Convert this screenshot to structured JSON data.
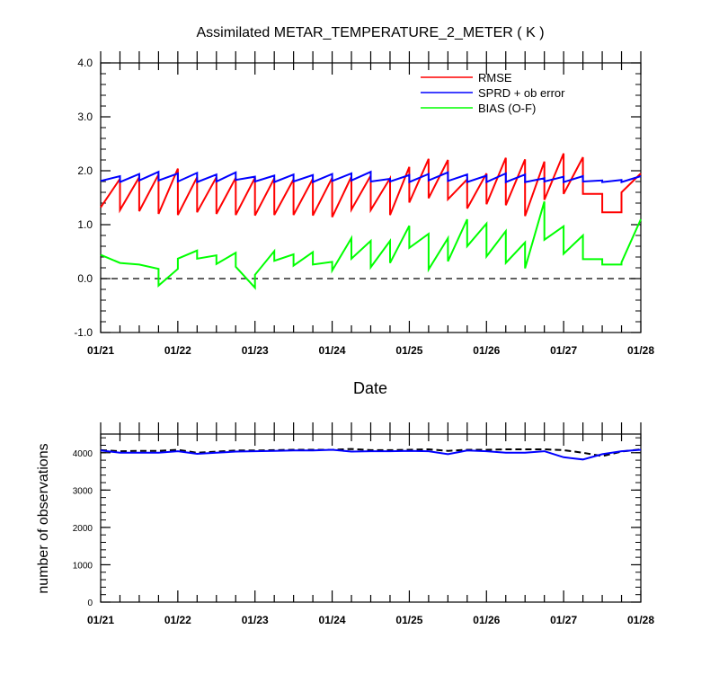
{
  "chart_data": [
    {
      "type": "line",
      "title": "Assimilated METAR_TEMPERATURE_2_METER ( K )",
      "xlabel": "Date",
      "ylabel": "",
      "ylim": [
        -1.0,
        4.0
      ],
      "yticks": [
        "-1.0",
        "0.0",
        "1.0",
        "2.0",
        "3.0",
        "4.0"
      ],
      "xlim": [
        0,
        7
      ],
      "xtick_labels": [
        "01/21",
        "01/22",
        "01/23",
        "01/24",
        "01/25",
        "01/26",
        "01/27",
        "01/28"
      ],
      "legend_position": "top-right",
      "reference_line": {
        "y": 0.0,
        "style": "dashed",
        "color": "#000000"
      },
      "series": [
        {
          "name": "RMSE",
          "color": "#ff0000",
          "x": [
            0,
            0.25,
            0.25,
            0.5,
            0.5,
            0.75,
            0.75,
            1.0,
            1.0,
            1.25,
            1.25,
            1.5,
            1.5,
            1.75,
            1.75,
            2.0,
            2.0,
            2.25,
            2.25,
            2.5,
            2.5,
            2.75,
            2.75,
            3.0,
            3.0,
            3.25,
            3.25,
            3.5,
            3.5,
            3.75,
            3.75,
            4.0,
            4.0,
            4.25,
            4.25,
            4.5,
            4.5,
            4.75,
            4.75,
            5.0,
            5.0,
            5.25,
            5.25,
            5.5,
            5.5,
            5.75,
            5.75,
            6.0,
            6.0,
            6.25,
            6.25,
            6.5,
            6.5,
            6.75,
            6.75,
            7.0
          ],
          "y": [
            1.32,
            1.85,
            1.27,
            1.88,
            1.25,
            1.93,
            1.2,
            2.04,
            1.18,
            1.88,
            1.23,
            1.88,
            1.2,
            1.87,
            1.18,
            1.87,
            1.17,
            1.86,
            1.18,
            1.84,
            1.18,
            1.85,
            1.17,
            1.87,
            1.14,
            1.89,
            1.28,
            1.91,
            1.27,
            1.86,
            1.18,
            2.07,
            1.41,
            2.22,
            1.49,
            2.2,
            1.47,
            1.84,
            1.3,
            1.95,
            1.38,
            2.24,
            1.36,
            2.21,
            1.16,
            2.17,
            1.46,
            2.32,
            1.57,
            2.25,
            1.57,
            1.57,
            1.23,
            1.23,
            1.6,
            1.95
          ]
        },
        {
          "name": "SPRD + ob error",
          "color": "#0000ff",
          "x": [
            0,
            0.25,
            0.25,
            0.5,
            0.5,
            0.75,
            0.75,
            1.0,
            1.0,
            1.25,
            1.25,
            1.5,
            1.5,
            1.75,
            1.75,
            2.0,
            2.0,
            2.25,
            2.25,
            2.5,
            2.5,
            2.75,
            2.75,
            3.0,
            3.0,
            3.25,
            3.25,
            3.5,
            3.5,
            3.75,
            3.75,
            4.0,
            4.0,
            4.25,
            4.25,
            4.5,
            4.5,
            4.75,
            4.75,
            5.0,
            5.0,
            5.25,
            5.25,
            5.5,
            5.5,
            5.75,
            5.75,
            6.0,
            6.0,
            6.25,
            6.25,
            6.5,
            6.5,
            6.75,
            6.75,
            7.0
          ],
          "y": [
            1.81,
            1.9,
            1.79,
            1.94,
            1.82,
            1.98,
            1.82,
            1.95,
            1.8,
            1.96,
            1.79,
            1.93,
            1.8,
            1.97,
            1.83,
            1.89,
            1.8,
            1.91,
            1.79,
            1.93,
            1.8,
            1.92,
            1.79,
            1.94,
            1.81,
            1.95,
            1.82,
            1.98,
            1.8,
            1.85,
            1.8,
            1.92,
            1.79,
            1.94,
            1.82,
            1.97,
            1.81,
            1.93,
            1.79,
            1.91,
            1.79,
            1.95,
            1.79,
            1.93,
            1.79,
            1.86,
            1.8,
            1.89,
            1.79,
            1.9,
            1.8,
            1.82,
            1.79,
            1.83,
            1.79,
            1.9
          ]
        },
        {
          "name": "BIAS (O-F)",
          "color": "#00ff00",
          "x": [
            0,
            0.25,
            0.5,
            0.75,
            0.75,
            1.0,
            1.0,
            1.25,
            1.25,
            1.5,
            1.5,
            1.75,
            1.75,
            2.0,
            2.0,
            2.25,
            2.25,
            2.5,
            2.5,
            2.75,
            2.75,
            3.0,
            3.0,
            3.25,
            3.25,
            3.5,
            3.5,
            3.75,
            3.75,
            4.0,
            4.0,
            4.25,
            4.25,
            4.5,
            4.5,
            4.75,
            4.75,
            5.0,
            5.0,
            5.25,
            5.25,
            5.5,
            5.5,
            5.75,
            5.75,
            6.0,
            6.0,
            6.25,
            6.25,
            6.5,
            6.5,
            6.75,
            6.75,
            7.0
          ],
          "y": [
            0.44,
            0.29,
            0.26,
            0.18,
            -0.13,
            0.18,
            0.37,
            0.52,
            0.37,
            0.43,
            0.27,
            0.48,
            0.22,
            -0.17,
            0.07,
            0.51,
            0.33,
            0.45,
            0.24,
            0.49,
            0.26,
            0.31,
            0.15,
            0.75,
            0.37,
            0.7,
            0.21,
            0.7,
            0.29,
            0.98,
            0.57,
            0.83,
            0.17,
            0.75,
            0.32,
            1.1,
            0.6,
            1.02,
            0.41,
            0.88,
            0.29,
            0.67,
            0.19,
            1.43,
            0.72,
            0.97,
            0.46,
            0.8,
            0.36,
            0.36,
            0.26,
            0.26,
            0.3,
            1.1
          ]
        }
      ]
    },
    {
      "type": "line",
      "title": "",
      "xlabel": "",
      "ylabel": "number of observations",
      "ylim": [
        0,
        4500
      ],
      "yticks": [
        "0",
        "1000",
        "2000",
        "3000",
        "4000"
      ],
      "xlim": [
        0,
        7
      ],
      "xtick_labels": [
        "01/21",
        "01/22",
        "01/23",
        "01/24",
        "01/25",
        "01/26",
        "01/27",
        "01/28"
      ],
      "series": [
        {
          "style": "dashed",
          "color": "#000000",
          "x": [
            0,
            0.25,
            0.5,
            0.75,
            1.0,
            1.25,
            1.5,
            1.75,
            2.0,
            2.25,
            2.5,
            2.75,
            3.0,
            3.25,
            3.5,
            3.75,
            4.0,
            4.25,
            4.5,
            4.75,
            5.0,
            5.25,
            5.5,
            5.75,
            6.0,
            6.25,
            6.5,
            6.75,
            7.0
          ],
          "y": [
            4070,
            4040,
            4050,
            4050,
            4080,
            4000,
            4030,
            4060,
            4060,
            4070,
            4080,
            4080,
            4080,
            4100,
            4070,
            4070,
            4080,
            4090,
            4050,
            4080,
            4080,
            4090,
            4090,
            4090,
            4070,
            4000,
            3910,
            4030,
            4090
          ]
        },
        {
          "style": "solid",
          "color": "#0000ff",
          "x": [
            0,
            0.25,
            0.5,
            0.75,
            1.0,
            1.25,
            1.5,
            1.75,
            2.0,
            2.25,
            2.5,
            2.75,
            3.0,
            3.25,
            3.5,
            3.75,
            4.0,
            4.25,
            4.5,
            4.75,
            5.0,
            5.25,
            5.5,
            5.75,
            6.0,
            6.25,
            6.5,
            6.75,
            7.0
          ],
          "y": [
            4060,
            4000,
            4000,
            4000,
            4040,
            3970,
            4000,
            4030,
            4040,
            4050,
            4060,
            4060,
            4080,
            4030,
            4040,
            4040,
            4050,
            4040,
            3960,
            4060,
            4040,
            4000,
            4000,
            4040,
            3880,
            3820,
            3960,
            4040,
            4080
          ]
        }
      ]
    }
  ]
}
